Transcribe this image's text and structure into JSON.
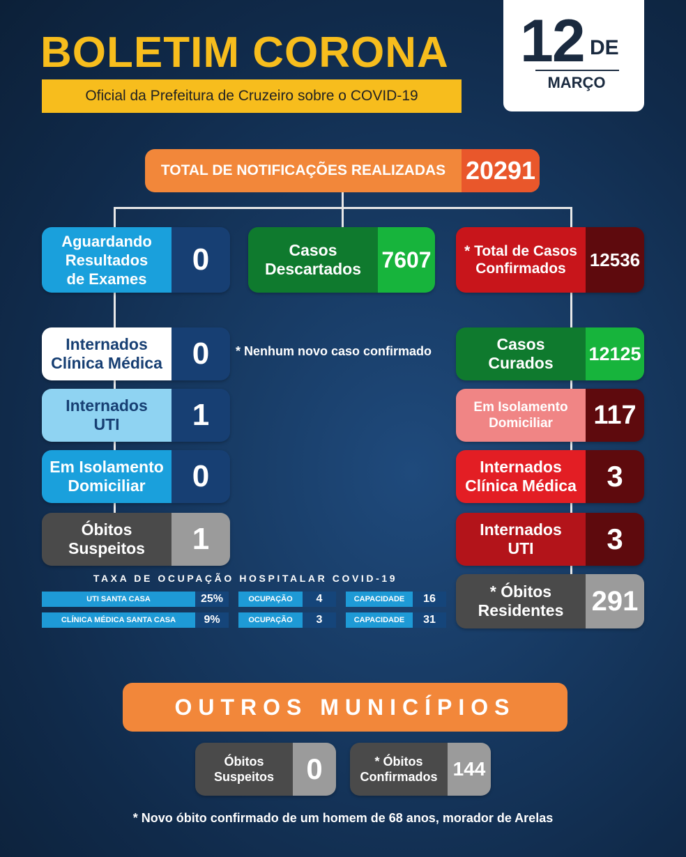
{
  "header": {
    "title": "BOLETIM CORONA",
    "subtitle": "Oficial da Prefeitura de Cruzeiro sobre o COVID-19",
    "date_day": "12",
    "date_de": "DE",
    "date_month": "MARÇO"
  },
  "total": {
    "label": "TOTAL DE NOTIFICAÇÕES REALIZADAS",
    "value": "20291"
  },
  "left": [
    {
      "label": "Aguardando\nResultados\nde Exames",
      "value": "0"
    },
    {
      "label": "Internados\nClínica Médica",
      "value": "0"
    },
    {
      "label": "Internados\nUTI",
      "value": "1"
    },
    {
      "label": "Em Isolamento\nDomiciliar",
      "value": "0"
    },
    {
      "label": "Óbitos\nSuspeitos",
      "value": "1"
    }
  ],
  "middle": {
    "label": "Casos\nDescartados",
    "value": "7607",
    "note": "* Nenhum novo caso confirmado"
  },
  "right": [
    {
      "label": "* Total de Casos\nConfirmados",
      "value": "12536"
    },
    {
      "label": "Casos\nCurados",
      "value": "12125"
    },
    {
      "label": "Em Isolamento\nDomiciliar",
      "value": "117"
    },
    {
      "label": "Internados\nClínica Médica",
      "value": "3"
    },
    {
      "label": "Internados\nUTI",
      "value": "3"
    },
    {
      "label": "* Óbitos\nResidentes",
      "value": "291"
    }
  ],
  "occupancy": {
    "title": "TAXA DE OCUPAÇÃO HOSPITALAR COVID-19",
    "rows": [
      {
        "name": "UTI SANTA CASA",
        "rate": "25%",
        "occ_label": "OCUPAÇÃO",
        "occ": "4",
        "cap_label": "CAPACIDADE",
        "cap": "16"
      },
      {
        "name": "CLÍNICA MÉDICA SANTA CASA",
        "rate": "9%",
        "occ_label": "OCUPAÇÃO",
        "occ": "3",
        "cap_label": "CAPACIDADE",
        "cap": "31"
      }
    ]
  },
  "outros": {
    "title": "OUTROS MUNICÍPIOS",
    "obitos_suspeitos_label": "Óbitos\nSuspeitos",
    "obitos_suspeitos_value": "0",
    "obitos_confirmados_label": "* Óbitos\nConfirmados",
    "obitos_confirmados_value": "144"
  },
  "footnote": "* Novo óbito confirmado de um homem de 68 anos, morador de Arelas",
  "colors": {
    "orange": "#f2873a",
    "yellow": "#f7bd1d",
    "green": "#12a43a",
    "red": "#c8151b",
    "dark_red": "#5e0a0d",
    "blue": "#1aa0dc",
    "navy": "#173f73",
    "gray": "#4a4a4a"
  }
}
